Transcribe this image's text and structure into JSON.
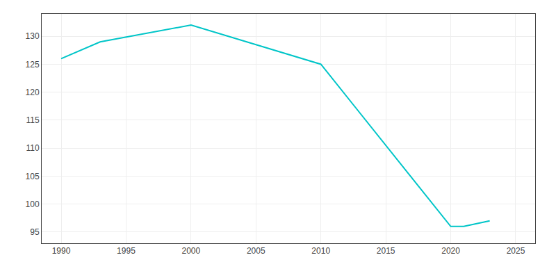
{
  "chart_data": {
    "type": "line",
    "x": [
      1990,
      1993,
      2000,
      2010,
      2020,
      2021,
      2023
    ],
    "values": [
      126,
      129,
      132,
      125,
      96,
      96,
      97
    ],
    "color": "#00c5c8",
    "xlim": [
      1988.5,
      2026.5
    ],
    "ylim": [
      93,
      134
    ],
    "xticks": [
      1990,
      1995,
      2000,
      2005,
      2010,
      2015,
      2020,
      2025
    ],
    "yticks": [
      95,
      100,
      105,
      110,
      115,
      120,
      125,
      130
    ],
    "grid": true
  }
}
